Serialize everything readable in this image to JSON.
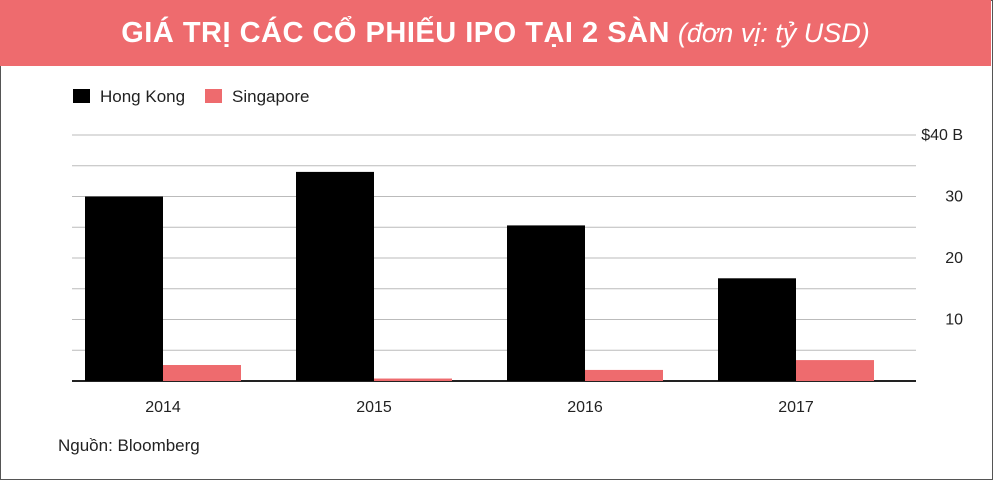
{
  "header": {
    "title": "GIÁ TRỊ CÁC CỔ PHIẾU IPO TẠI 2 SÀN",
    "unit": "(đơn vị: tỷ USD)"
  },
  "source": "Nguồn: Bloomberg",
  "colors": {
    "banner": "#ee6b6e",
    "hong_kong": "#000000",
    "singapore": "#ee6b6e",
    "grid": "#bbbbbb",
    "axis": "#222222"
  },
  "chart_data": {
    "type": "bar",
    "categories": [
      "2014",
      "2015",
      "2016",
      "2017"
    ],
    "series": [
      {
        "name": "Hong Kong",
        "values": [
          30,
          34,
          25.3,
          16.7
        ]
      },
      {
        "name": "Singapore",
        "values": [
          2.6,
          0.4,
          1.8,
          3.4
        ]
      }
    ],
    "ylim": [
      0,
      40
    ],
    "yticks": [
      10,
      20,
      30,
      40
    ],
    "ytick_labels": [
      "10",
      "20",
      "30",
      "$40 B"
    ],
    "grid": true,
    "legend": "top-left",
    "yaxis_position": "right"
  }
}
